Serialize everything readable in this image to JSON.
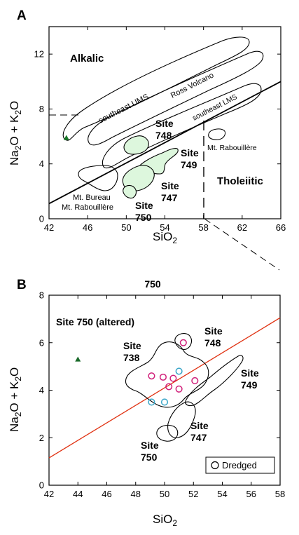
{
  "chart_data": [
    {
      "type": "scatter",
      "panel_label": "A",
      "xlabel": "SiO",
      "xlabel_sub": "2",
      "ylabel": "Na2O + K2O",
      "xlim": [
        42,
        66
      ],
      "ylim": [
        0,
        14
      ],
      "xticks": [
        42,
        46,
        50,
        54,
        58,
        62,
        66
      ],
      "yticks": [
        0,
        4,
        8,
        12
      ],
      "field_labels": {
        "alkalic": "Alkalic",
        "tholeiitic": "Tholeiitic",
        "se_ums": "southeast UMS",
        "ross": "Ross Volcano",
        "se_lms": "southeast LMS",
        "mt_rab": "Mt. Rabouillère",
        "mt_bureau": "Mt. Bureau",
        "mt_rab2": "Mt. Rabouillère"
      },
      "site_labels": {
        "s748": [
          "Site",
          "748"
        ],
        "s749": [
          "Site",
          "749"
        ],
        "s747": [
          "Site",
          "747"
        ],
        "s750": [
          "Site",
          "750"
        ]
      },
      "divider_line": [
        [
          42,
          1.1
        ],
        [
          66,
          10.0
        ]
      ],
      "point": {
        "x": 43.8,
        "y": 5.9,
        "color": "#1a7a2a"
      },
      "fill_color": "#ddf7dd"
    },
    {
      "type": "scatter",
      "panel_label": "B",
      "title": "750",
      "xlabel": "SiO",
      "xlabel_sub": "2",
      "ylabel": "Na2O + K2O",
      "xlim": [
        42,
        58
      ],
      "ylim": [
        0,
        8
      ],
      "xticks": [
        42,
        44,
        46,
        48,
        50,
        52,
        54,
        56,
        58
      ],
      "yticks": [
        0,
        2,
        4,
        6,
        8
      ],
      "divider_line": [
        [
          42,
          1.15
        ],
        [
          58,
          7.05
        ]
      ],
      "divider_color": "#e03010",
      "altered_label": "Site 750 (altered)",
      "altered_point": {
        "x": 44.0,
        "y": 5.3,
        "color": "#1a6a2a"
      },
      "site_labels": {
        "s738": [
          "Site",
          "738"
        ],
        "s748": [
          "Site",
          "748"
        ],
        "s749": [
          "Site",
          "749"
        ],
        "s747": [
          "Site",
          "747"
        ],
        "s750": [
          "Site",
          "750"
        ]
      },
      "legend": {
        "label": "Dredged",
        "placement": "bottom-right"
      },
      "dredged_magenta": {
        "color": "#d0207a",
        "points": [
          [
            51.3,
            6.0
          ],
          [
            49.1,
            4.6
          ],
          [
            49.9,
            4.55
          ],
          [
            50.6,
            4.5
          ],
          [
            50.3,
            4.15
          ],
          [
            51.0,
            4.05
          ],
          [
            52.1,
            4.4
          ]
        ]
      },
      "dredged_cyan": {
        "color": "#3aa6c8",
        "points": [
          [
            51.0,
            4.8
          ],
          [
            49.1,
            3.5
          ],
          [
            50.0,
            3.5
          ]
        ]
      }
    }
  ]
}
